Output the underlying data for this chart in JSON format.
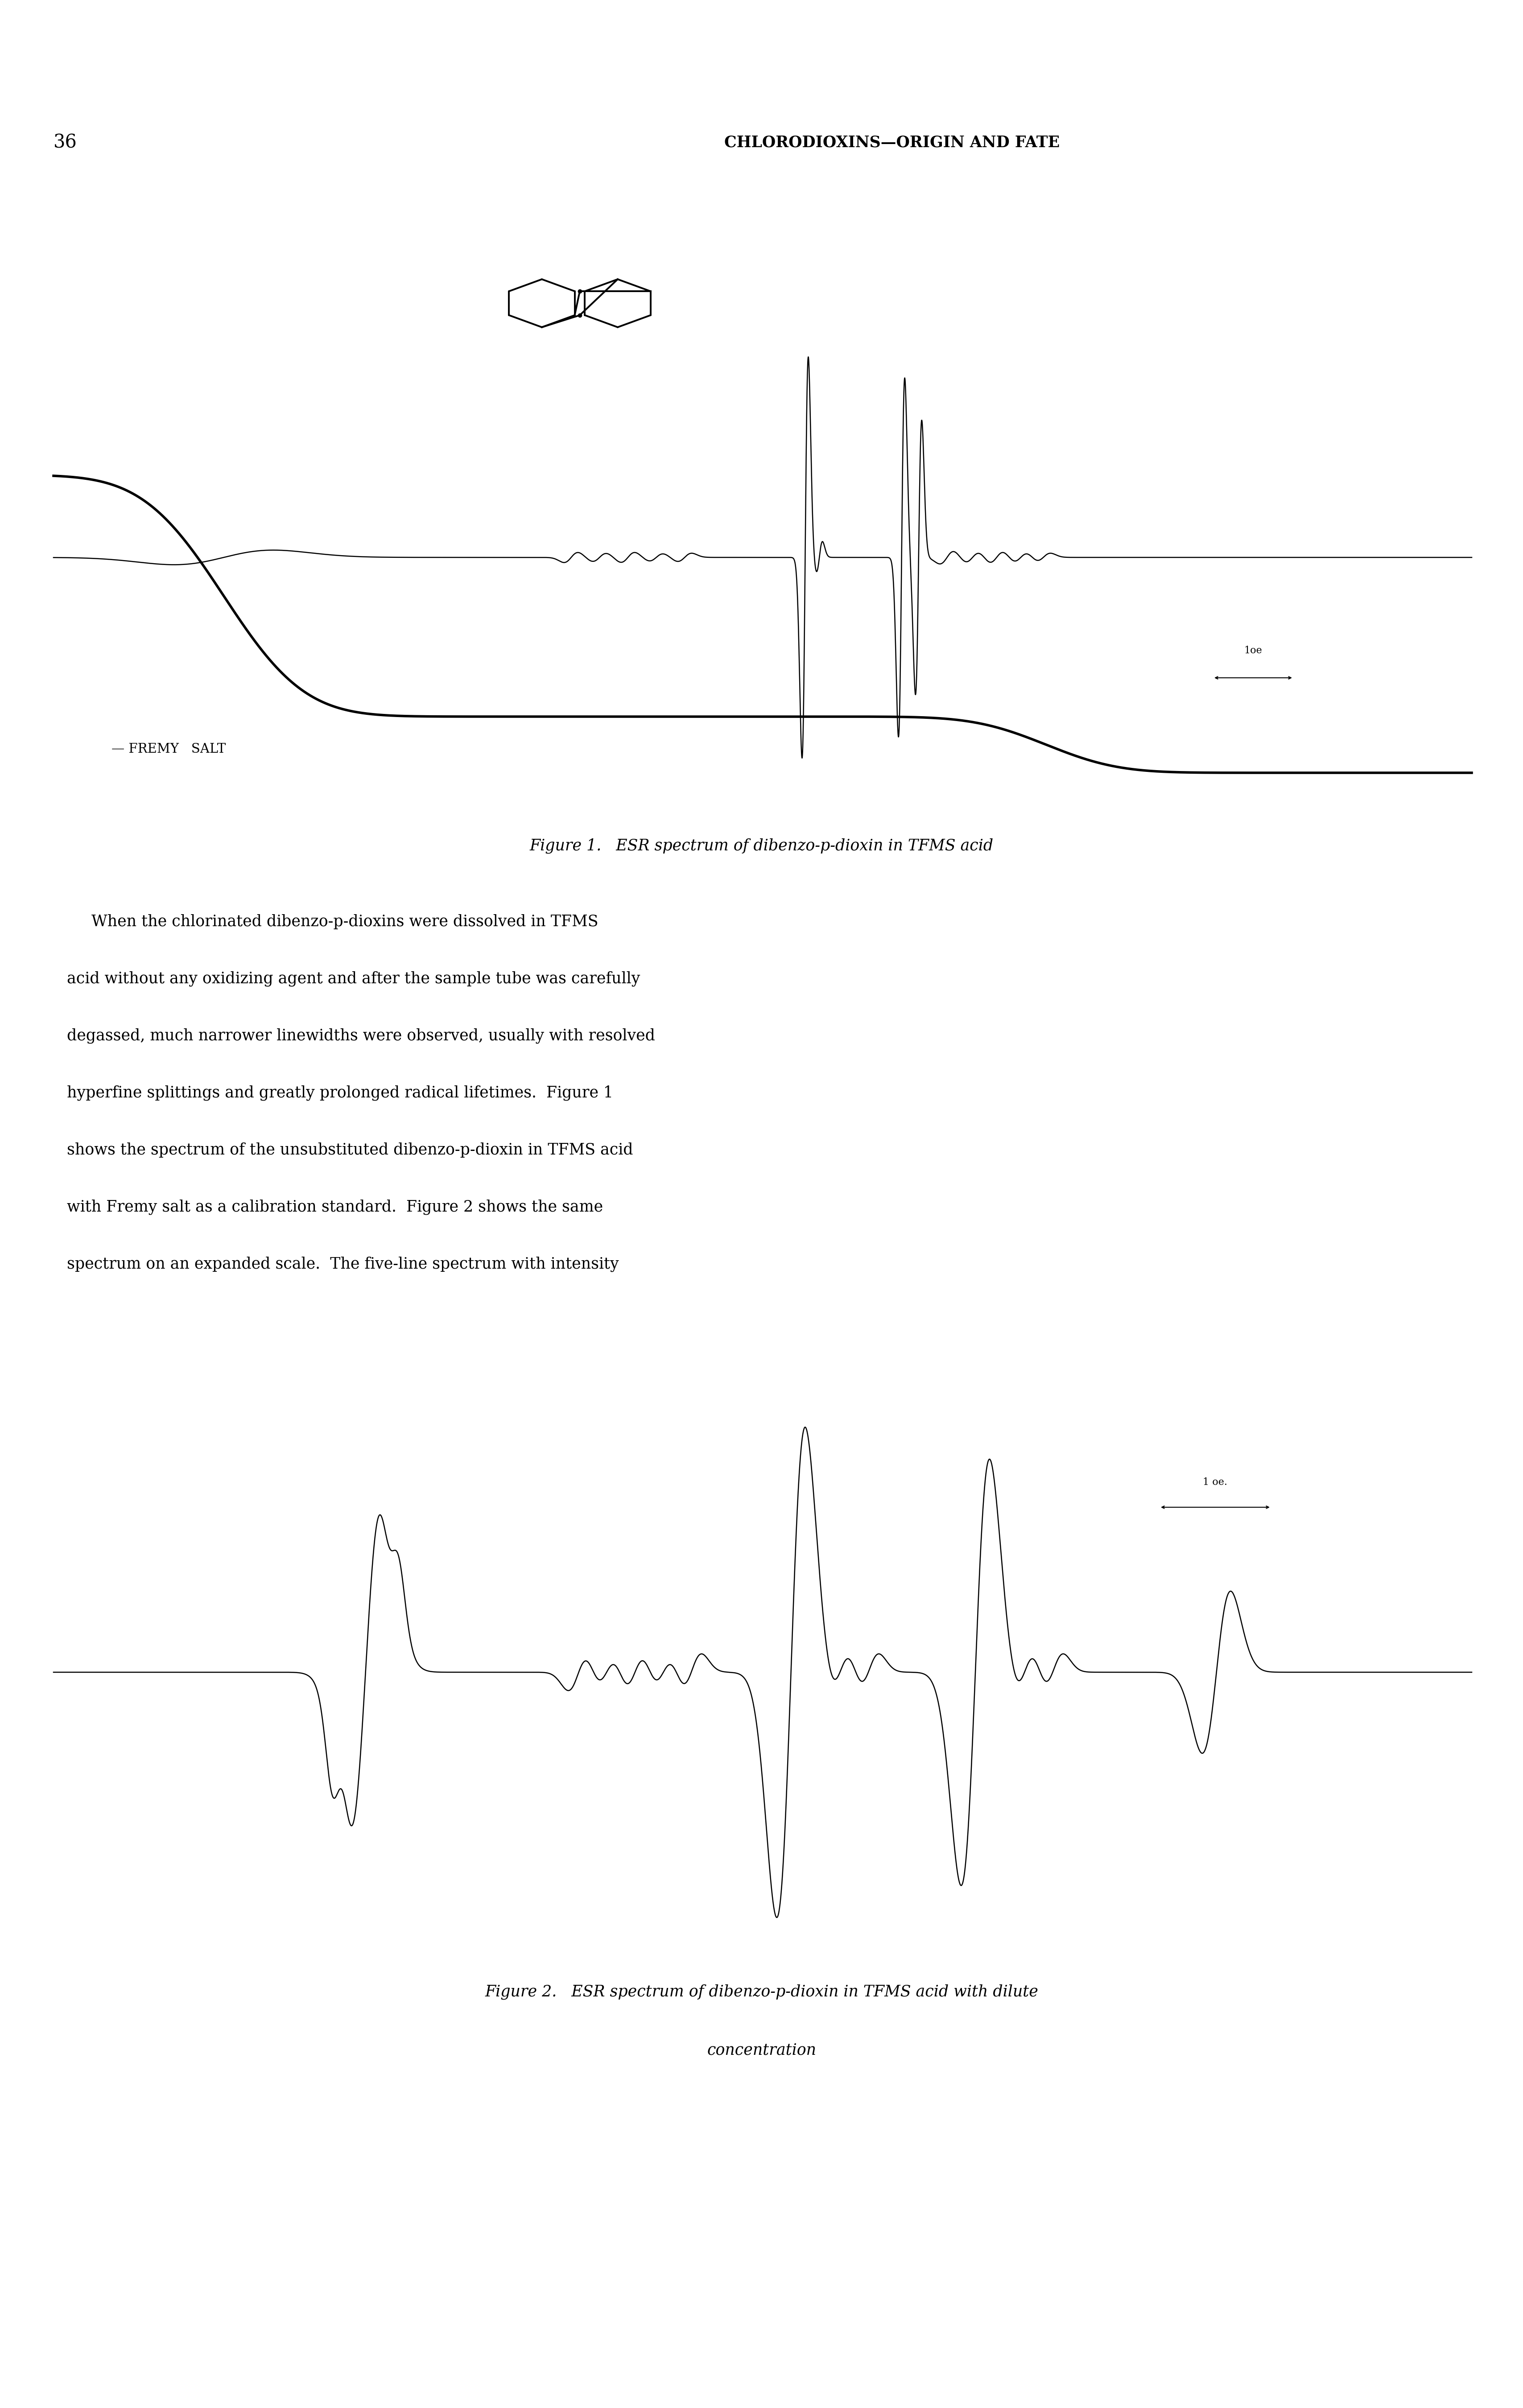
{
  "page_number": "36",
  "header": "CHLORODIOXINS—ORIGIN AND FATE",
  "fig1_caption": "Figure 1.   ESR spectrum of dibenzo-p-dioxin in TFMS acid",
  "fig2_caption_line1": "Figure 2.   ESR spectrum of dibenzo-p-dioxin in TFMS acid with dilute",
  "fig2_caption_line2": "concentration",
  "body_text": [
    "     When the chlorinated dibenzo-p-dioxins were dissolved in TFMS",
    "acid without any oxidizing agent and after the sample tube was carefully",
    "degassed, much narrower linewidths were observed, usually with resolved",
    "hyperfine splittings and greatly prolonged radical lifetimes.  Figure 1",
    "shows the spectrum of the unsubstituted dibenzo-p-dioxin in TFMS acid",
    "with Fremy salt as a calibration standard.  Figure 2 shows the same",
    "spectrum on an expanded scale.  The five-line spectrum with intensity"
  ],
  "fremy_label": "— FREMY   SALT",
  "scale1_label": "←|1oe|→",
  "scale2_label": "←|1 oe.|→",
  "background_color": "#ffffff",
  "text_color": "#000000",
  "line_color": "#000000"
}
